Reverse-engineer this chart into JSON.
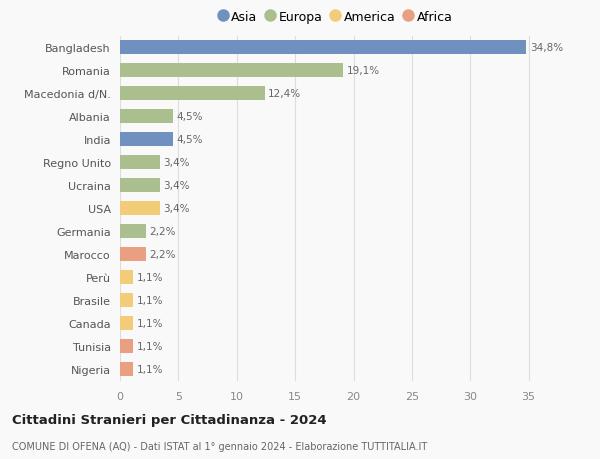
{
  "countries": [
    "Bangladesh",
    "Romania",
    "Macedonia d/N.",
    "Albania",
    "India",
    "Regno Unito",
    "Ucraina",
    "USA",
    "Germania",
    "Marocco",
    "Perù",
    "Brasile",
    "Canada",
    "Tunisia",
    "Nigeria"
  ],
  "values": [
    34.8,
    19.1,
    12.4,
    4.5,
    4.5,
    3.4,
    3.4,
    3.4,
    2.2,
    2.2,
    1.1,
    1.1,
    1.1,
    1.1,
    1.1
  ],
  "labels": [
    "34,8%",
    "19,1%",
    "12,4%",
    "4,5%",
    "4,5%",
    "3,4%",
    "3,4%",
    "3,4%",
    "2,2%",
    "2,2%",
    "1,1%",
    "1,1%",
    "1,1%",
    "1,1%",
    "1,1%"
  ],
  "colors": [
    "#7090c0",
    "#abbe8e",
    "#abbe8e",
    "#abbe8e",
    "#7090c0",
    "#abbe8e",
    "#abbe8e",
    "#f2cc78",
    "#abbe8e",
    "#e8a080",
    "#f2cc78",
    "#f2cc78",
    "#f2cc78",
    "#e8a080",
    "#e8a080"
  ],
  "legend_labels": [
    "Asia",
    "Europa",
    "America",
    "Africa"
  ],
  "legend_colors": [
    "#7090c0",
    "#abbe8e",
    "#f2cc78",
    "#e8a080"
  ],
  "title": "Cittadini Stranieri per Cittadinanza - 2024",
  "subtitle": "COMUNE DI OFENA (AQ) - Dati ISTAT al 1° gennaio 2024 - Elaborazione TUTTITALIA.IT",
  "xlim": [
    0,
    37
  ],
  "xticks": [
    0,
    5,
    10,
    15,
    20,
    25,
    30,
    35
  ],
  "background_color": "#f9f9f9",
  "grid_color": "#dddddd",
  "bar_height": 0.6
}
